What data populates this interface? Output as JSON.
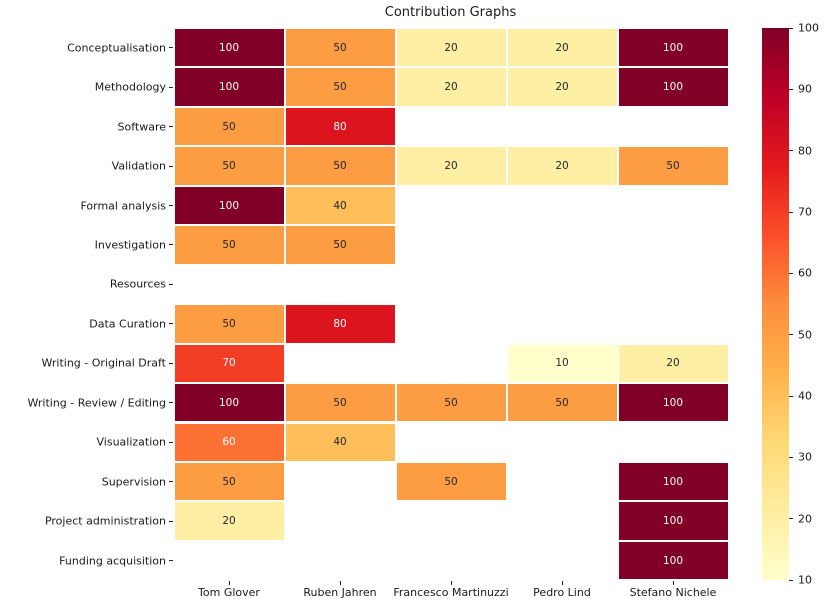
{
  "figure": {
    "background": "#ffffff"
  },
  "chart_data": {
    "type": "heatmap",
    "title": "Contribution Graphs",
    "x_categories": [
      "Tom Glover",
      "Ruben Jahren",
      "Francesco Martinuzzi",
      "Pedro Lind",
      "Stefano Nichele"
    ],
    "y_categories": [
      "Conceptualisation",
      "Methodology",
      "Software",
      "Validation",
      "Formal analysis",
      "Investigation",
      "Resources",
      "Data Curation",
      "Writing - Original Draft",
      "Writing - Review / Editing",
      "Visualization",
      "Supervision",
      "Project administration",
      "Funding acquisition"
    ],
    "values": [
      [
        100,
        50,
        20,
        20,
        100
      ],
      [
        100,
        50,
        20,
        20,
        100
      ],
      [
        50,
        80,
        null,
        null,
        null
      ],
      [
        50,
        50,
        20,
        20,
        50
      ],
      [
        100,
        40,
        null,
        null,
        null
      ],
      [
        50,
        50,
        null,
        null,
        null
      ],
      [
        null,
        null,
        null,
        null,
        null
      ],
      [
        50,
        80,
        null,
        null,
        null
      ],
      [
        70,
        null,
        null,
        10,
        20
      ],
      [
        100,
        50,
        50,
        50,
        100
      ],
      [
        60,
        40,
        null,
        null,
        null
      ],
      [
        50,
        null,
        50,
        null,
        100
      ],
      [
        20,
        null,
        null,
        null,
        100
      ],
      [
        null,
        null,
        null,
        null,
        100
      ]
    ],
    "vmin": 10,
    "vmax": 100,
    "colormap_name": "YlOrRd",
    "colormap_anchors": [
      "#ffffcc",
      "#ffeda0",
      "#fed976",
      "#feb24c",
      "#fd8d3c",
      "#fc4e2a",
      "#e31a1c",
      "#bd0026",
      "#800026"
    ],
    "colorbar": {
      "position": "right",
      "ticks": [
        100,
        90,
        80,
        70,
        60,
        50,
        40,
        30,
        20,
        10
      ]
    },
    "annotation": {
      "dark_text": "#262626",
      "light_text": "#ffffff",
      "luminance_threshold": 0.408
    },
    "cell_border_color": "#ffffff",
    "empty_cell_color": "#ffffff",
    "grid": false,
    "axis_label_color": "#1a1a1a"
  }
}
